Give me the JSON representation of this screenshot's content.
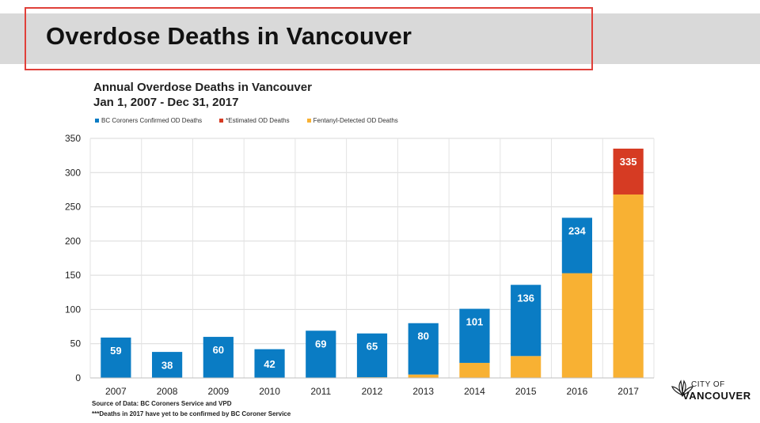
{
  "slide": {
    "title": "Overdose Deaths in Vancouver"
  },
  "logo": {
    "line1": "CITY OF",
    "line2": "VANCOUVER"
  },
  "footnotes": {
    "source": "Source of Data: BC Coroners Service and VPD",
    "note": "***Deaths in 2017 have yet to be confirmed by BC Coroner Service"
  },
  "chart_data": {
    "type": "bar",
    "stacked": true,
    "title": "Annual Overdose Deaths in Vancouver",
    "subtitle": "Jan 1, 2007 - Dec 31, 2017",
    "xlabel": "",
    "ylabel": "",
    "ylim": [
      0,
      350
    ],
    "yticks": [
      0,
      50,
      100,
      150,
      200,
      250,
      300,
      350
    ],
    "grid": true,
    "legend_position": "top-left",
    "categories": [
      "2007",
      "2008",
      "2009",
      "2010",
      "2011",
      "2012",
      "2013",
      "2014",
      "2015",
      "2016",
      "2017"
    ],
    "series": [
      {
        "name": "Fentanyl-Detected OD Deaths",
        "color": "#f8b133",
        "values": [
          0,
          0,
          0,
          0,
          0,
          1,
          5,
          22,
          32,
          153,
          268
        ]
      },
      {
        "name": "BC Coroners Confirmed OD Deaths",
        "color": "#0a7cc4",
        "values": [
          59,
          38,
          60,
          42,
          69,
          64,
          75,
          79,
          104,
          81,
          0
        ]
      },
      {
        "name": "*Estimated OD Deaths",
        "color": "#d63b23",
        "values": [
          0,
          0,
          0,
          0,
          0,
          0,
          0,
          0,
          0,
          0,
          67
        ]
      }
    ],
    "totals": [
      59,
      38,
      60,
      42,
      69,
      65,
      80,
      101,
      136,
      234,
      335
    ],
    "legend_order": [
      "BC Coroners Confirmed OD Deaths",
      "*Estimated OD Deaths",
      "Fentanyl-Detected OD Deaths"
    ]
  }
}
